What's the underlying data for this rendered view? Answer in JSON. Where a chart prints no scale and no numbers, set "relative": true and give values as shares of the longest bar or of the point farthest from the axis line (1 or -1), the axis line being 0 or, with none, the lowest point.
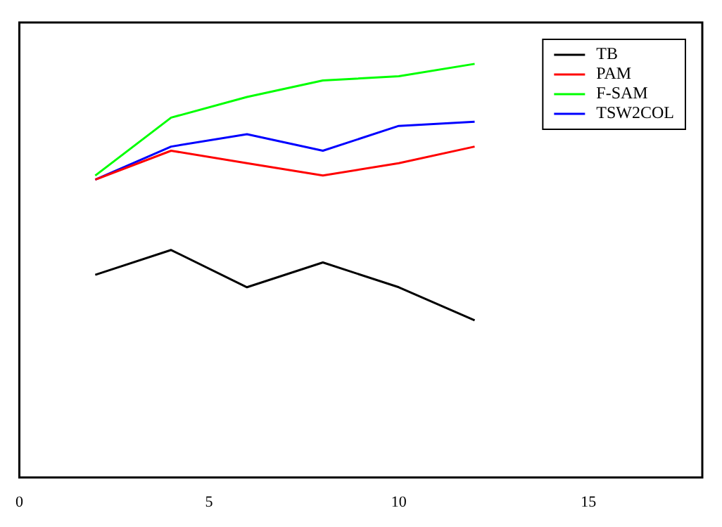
{
  "chart_data": {
    "type": "line",
    "relative": true,
    "x": [
      2,
      4,
      6,
      8,
      10,
      12
    ],
    "xlim": [
      0,
      18
    ],
    "xticks": [
      0,
      5,
      10,
      15
    ],
    "legend": "top right",
    "grid": false,
    "marker": "none",
    "line_style": "solid",
    "series": [
      {
        "name": "TB",
        "color": "#000000",
        "values": [
          0.49,
          0.55,
          0.46,
          0.52,
          0.46,
          0.38
        ]
      },
      {
        "name": "PAM",
        "color": "#ff0000",
        "values": [
          0.72,
          0.79,
          0.76,
          0.73,
          0.76,
          0.8
        ]
      },
      {
        "name": "F-SAM",
        "color": "#00ff00",
        "values": [
          0.73,
          0.87,
          0.92,
          0.96,
          0.97,
          1
        ]
      },
      {
        "name": "TSW2COL",
        "color": "#0000ff",
        "values": [
          0.72,
          0.8,
          0.83,
          0.79,
          0.85,
          0.86
        ]
      }
    ]
  }
}
